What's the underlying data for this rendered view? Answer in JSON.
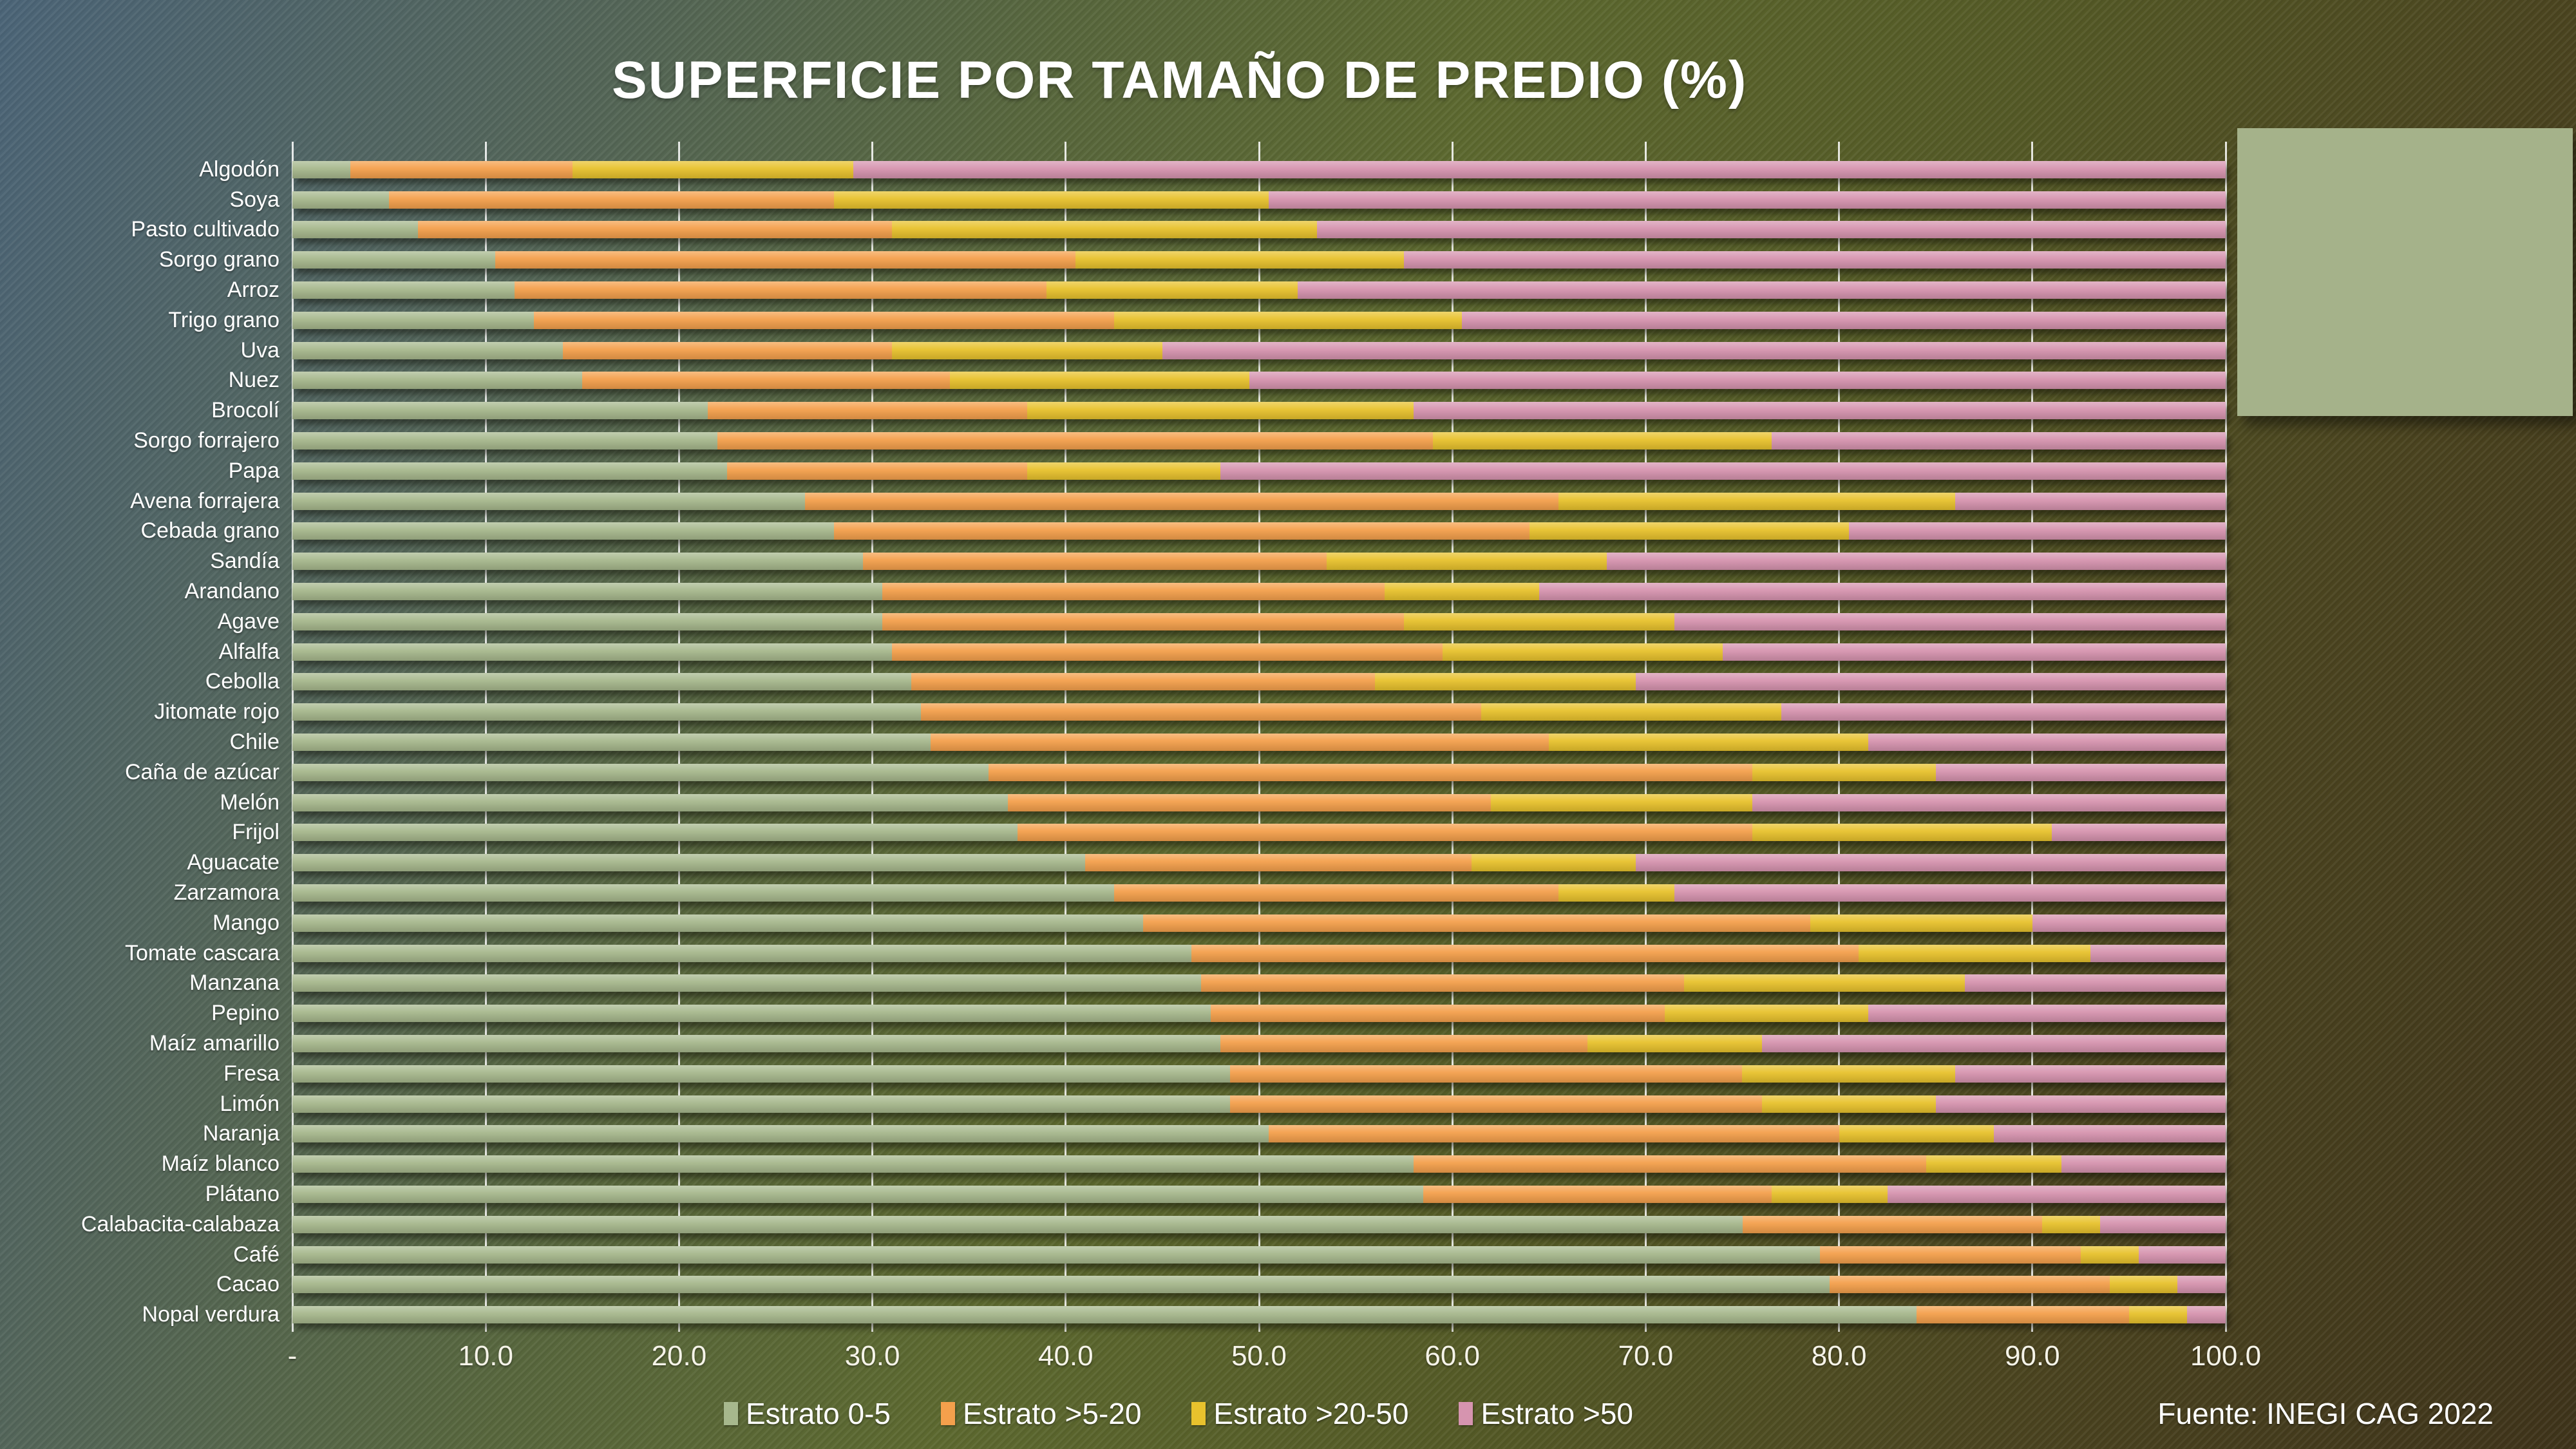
{
  "slide": {
    "title": "SUPERFICIE POR TAMAÑO DE PREDIO (%)",
    "source": "Fuente: INEGI CAG 2022",
    "background_colors": {
      "top_left": "#4b6477",
      "middle": "#5c682f",
      "bottom_right": "#3e331a"
    },
    "side_panel_color": "#a5b28a"
  },
  "chart_data": {
    "type": "bar",
    "orientation": "horizontal",
    "stacked": true,
    "title": "SUPERFICIE POR TAMAÑO DE PREDIO (%)",
    "xlabel": "",
    "ylabel": "",
    "xlim": [
      0,
      100
    ],
    "x_ticks": [
      "-",
      "10.0",
      "20.0",
      "30.0",
      "40.0",
      "50.0",
      "60.0",
      "70.0",
      "80.0",
      "90.0",
      "100.0"
    ],
    "grid": true,
    "legend_position": "bottom",
    "series": [
      {
        "name": "Estrato 0-5",
        "color": "#a7b88d"
      },
      {
        "name": "Estrato >5-20",
        "color": "#f4a04c"
      },
      {
        "name": "Estrato >20-50",
        "color": "#e8c22d"
      },
      {
        "name": "Estrato >50",
        "color": "#d694af"
      }
    ],
    "categories": [
      "Algodón",
      "Soya",
      "Pasto cultivado",
      "Sorgo grano",
      "Arroz",
      "Trigo grano",
      "Uva",
      "Nuez",
      "Brocolí",
      "Sorgo forrajero",
      "Papa",
      "Avena forrajera",
      "Cebada grano",
      "Sandía",
      "Arandano",
      "Agave",
      "Alfalfa",
      "Cebolla",
      "Jitomate rojo",
      "Chile",
      "Caña de azúcar",
      "Melón",
      "Frijol",
      "Aguacate",
      "Zarzamora",
      "Mango",
      "Tomate cascara",
      "Manzana",
      "Pepino",
      "Maíz amarillo",
      "Fresa",
      "Limón",
      "Naranja",
      "Maíz blanco",
      "Plátano",
      "Calabacita-calabaza",
      "Café",
      "Cacao",
      "Nopal verdura"
    ],
    "values": [
      [
        3.0,
        11.5,
        14.5,
        71.0
      ],
      [
        5.0,
        23.0,
        22.5,
        49.5
      ],
      [
        6.5,
        24.5,
        22.0,
        47.0
      ],
      [
        10.5,
        30.0,
        17.0,
        42.5
      ],
      [
        11.5,
        27.5,
        13.0,
        48.0
      ],
      [
        12.5,
        30.0,
        18.0,
        39.5
      ],
      [
        14.0,
        17.0,
        14.0,
        55.0
      ],
      [
        15.0,
        19.0,
        15.5,
        50.5
      ],
      [
        21.5,
        16.5,
        20.0,
        42.0
      ],
      [
        22.0,
        37.0,
        17.5,
        23.5
      ],
      [
        22.5,
        15.5,
        10.0,
        52.0
      ],
      [
        26.5,
        39.0,
        20.5,
        14.0
      ],
      [
        28.0,
        36.0,
        16.5,
        19.5
      ],
      [
        29.5,
        24.0,
        14.5,
        32.0
      ],
      [
        30.5,
        26.0,
        8.0,
        35.5
      ],
      [
        30.5,
        27.0,
        14.0,
        28.5
      ],
      [
        31.0,
        28.5,
        14.5,
        26.0
      ],
      [
        32.0,
        24.0,
        13.5,
        30.5
      ],
      [
        32.5,
        29.0,
        15.5,
        23.0
      ],
      [
        33.0,
        32.0,
        16.5,
        18.5
      ],
      [
        36.0,
        39.5,
        9.5,
        15.0
      ],
      [
        37.0,
        25.0,
        13.5,
        24.5
      ],
      [
        37.5,
        38.0,
        15.5,
        9.0
      ],
      [
        41.0,
        20.0,
        8.5,
        30.5
      ],
      [
        42.5,
        23.0,
        6.0,
        28.5
      ],
      [
        44.0,
        34.5,
        11.5,
        10.0
      ],
      [
        46.5,
        34.5,
        12.0,
        7.0
      ],
      [
        47.0,
        25.0,
        14.5,
        13.5
      ],
      [
        47.5,
        23.5,
        10.5,
        18.5
      ],
      [
        48.0,
        19.0,
        9.0,
        24.0
      ],
      [
        48.5,
        26.5,
        11.0,
        14.0
      ],
      [
        48.5,
        27.5,
        9.0,
        15.0
      ],
      [
        50.5,
        29.5,
        8.0,
        12.0
      ],
      [
        58.0,
        26.5,
        7.0,
        8.5
      ],
      [
        58.5,
        18.0,
        6.0,
        17.5
      ],
      [
        75.0,
        15.5,
        3.0,
        6.5
      ],
      [
        79.0,
        13.5,
        3.0,
        4.5
      ],
      [
        79.5,
        14.5,
        3.5,
        2.5
      ],
      [
        84.0,
        11.0,
        3.0,
        2.0
      ]
    ]
  }
}
